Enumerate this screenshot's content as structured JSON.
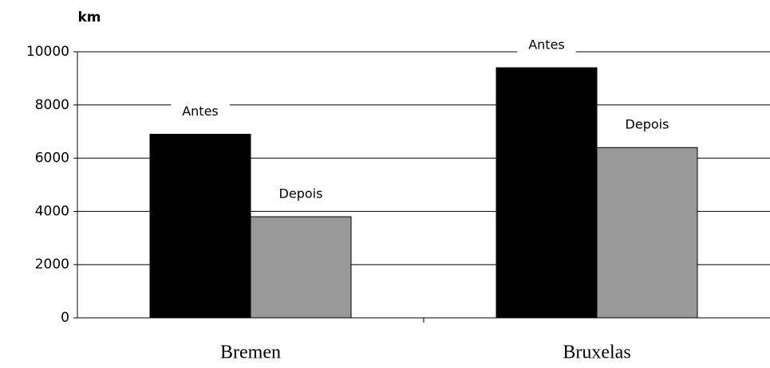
{
  "chart_data": {
    "type": "bar",
    "y_label": "km",
    "categories": [
      "Bremen",
      "Bruxelas"
    ],
    "series": [
      {
        "name": "Antes",
        "color": "#000000",
        "values": [
          6900,
          9400
        ]
      },
      {
        "name": "Depois",
        "color": "#999999",
        "values": [
          3800,
          6400
        ]
      }
    ],
    "ylim": [
      0,
      10000
    ],
    "yticks": [
      0,
      2000,
      4000,
      6000,
      8000,
      10000
    ],
    "grid": true
  }
}
